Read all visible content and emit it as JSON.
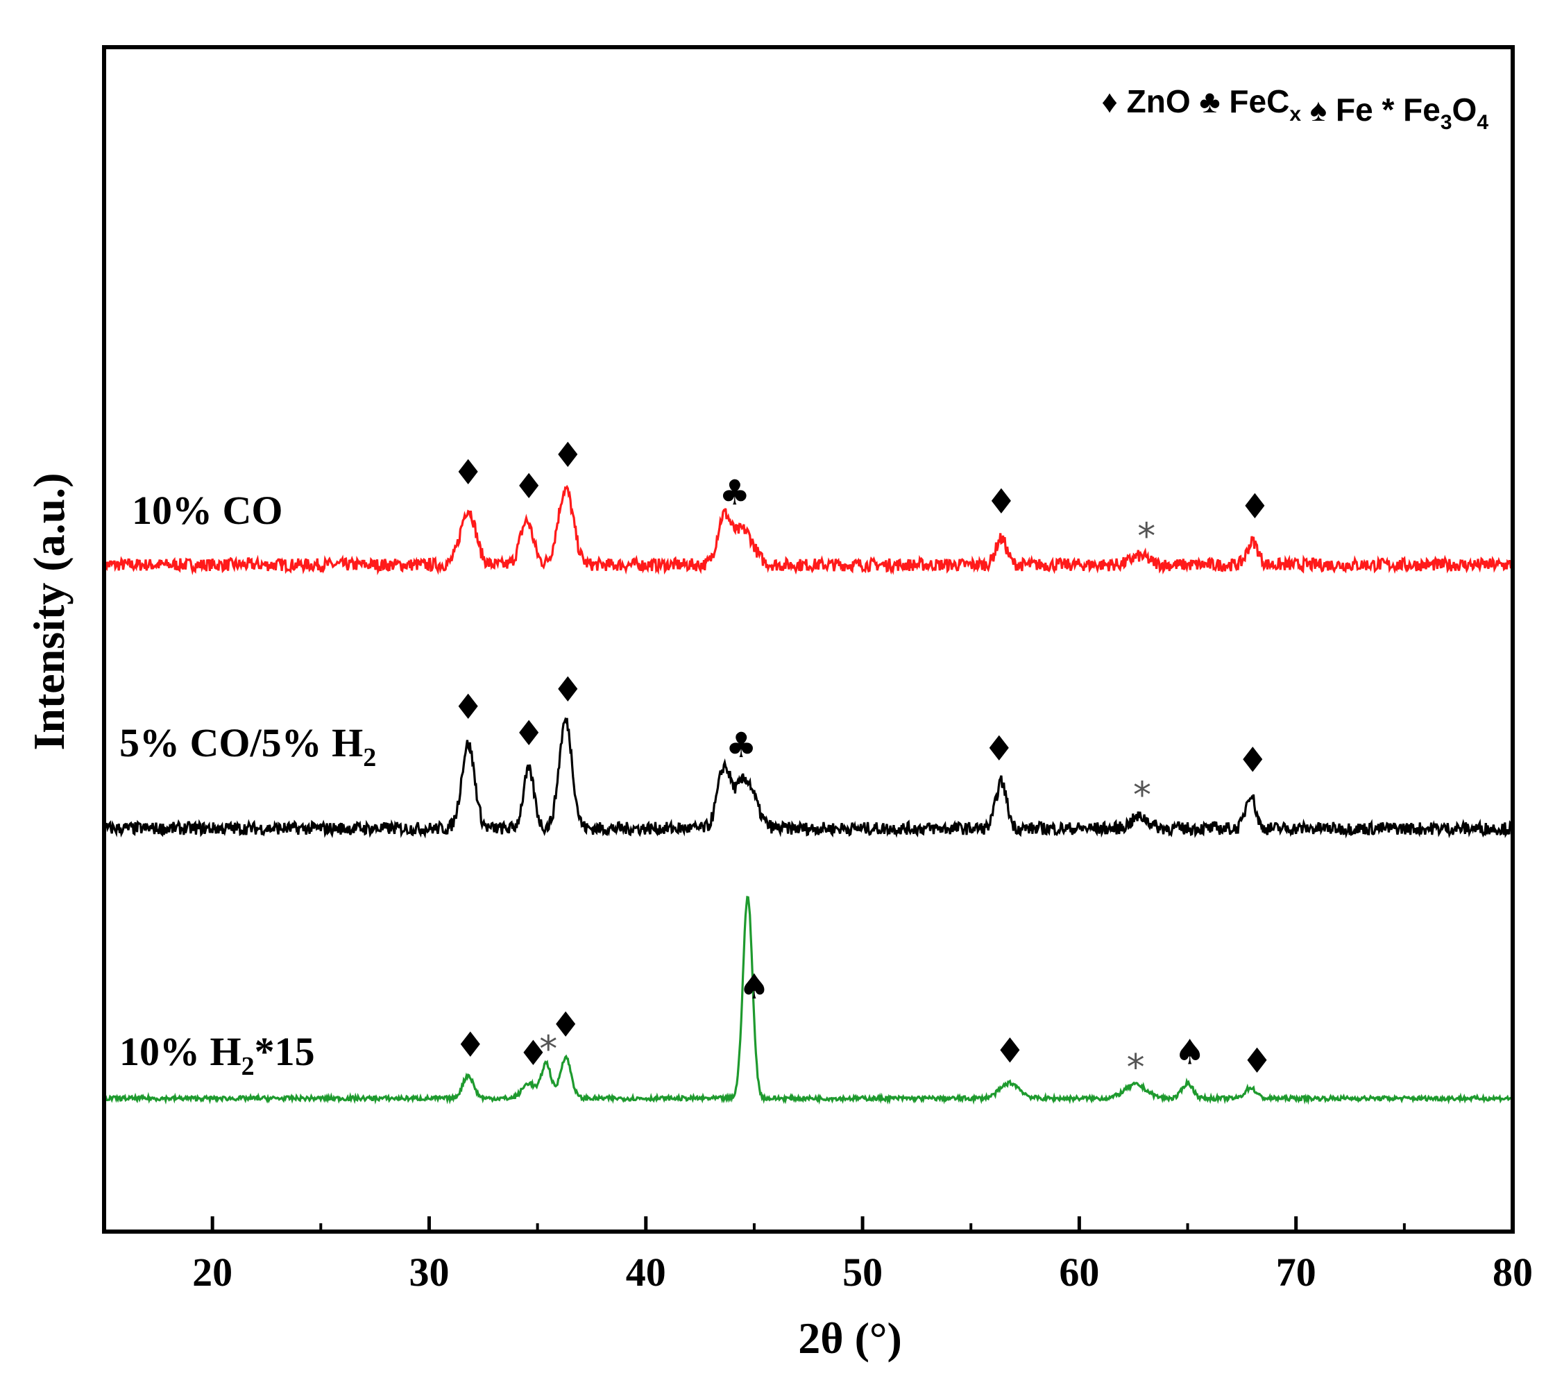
{
  "chart_data": {
    "type": "line",
    "xlabel": "2θ (°)",
    "ylabel": "Intensity (a.u.)",
    "xlim": [
      15,
      80
    ],
    "x_ticks": [
      20,
      30,
      40,
      50,
      60,
      70,
      80
    ],
    "y_ticks": [],
    "grid": false,
    "legend": {
      "placement": "top-right",
      "entries": [
        {
          "symbol": "♦",
          "parts": [
            {
              "t": "ZnO"
            }
          ]
        },
        {
          "symbol": "♣",
          "parts": [
            {
              "t": "FeC"
            },
            {
              "t": "x",
              "sub": true
            }
          ]
        },
        {
          "symbol": "♠",
          "parts": [
            {
              "t": "Fe"
            }
          ]
        },
        {
          "symbol": "*",
          "parts": [
            {
              "t": "Fe"
            },
            {
              "t": "3",
              "sub": true
            },
            {
              "t": "O"
            },
            {
              "t": "4",
              "sub": true
            }
          ]
        }
      ]
    },
    "colors": {
      "red": "#ff1a1a",
      "black": "#000000",
      "green": "#1e9a2e"
    },
    "series": [
      {
        "name": "10% CO",
        "label_parts": [
          {
            "t": "10% CO"
          }
        ],
        "color": "#ff1a1a",
        "baseline": 0.5,
        "noise": 0.22,
        "peaks": [
          {
            "x": 31.8,
            "h": 1.9,
            "w": 0.35
          },
          {
            "x": 34.5,
            "h": 1.5,
            "w": 0.3
          },
          {
            "x": 36.3,
            "h": 2.6,
            "w": 0.35
          },
          {
            "x": 43.6,
            "h": 1.6,
            "w": 0.3
          },
          {
            "x": 44.5,
            "h": 1.2,
            "w": 0.45
          },
          {
            "x": 56.4,
            "h": 0.9,
            "w": 0.25
          },
          {
            "x": 62.8,
            "h": 0.3,
            "w": 0.4
          },
          {
            "x": 68.0,
            "h": 0.8,
            "w": 0.25
          }
        ]
      },
      {
        "name": "5% CO/5% H2",
        "label_parts": [
          {
            "t": "5% CO/5% H"
          },
          {
            "t": "2",
            "sub": true
          }
        ],
        "color": "#000000",
        "baseline": 0.5,
        "noise": 0.22,
        "peaks": [
          {
            "x": 31.8,
            "h": 2.9,
            "w": 0.3
          },
          {
            "x": 34.6,
            "h": 2.0,
            "w": 0.25
          },
          {
            "x": 36.3,
            "h": 3.7,
            "w": 0.3
          },
          {
            "x": 43.6,
            "h": 2.0,
            "w": 0.3
          },
          {
            "x": 44.6,
            "h": 1.7,
            "w": 0.45
          },
          {
            "x": 56.4,
            "h": 1.6,
            "w": 0.25
          },
          {
            "x": 62.8,
            "h": 0.4,
            "w": 0.4
          },
          {
            "x": 67.9,
            "h": 1.2,
            "w": 0.22
          }
        ]
      },
      {
        "name": "10% H2*15",
        "label_parts": [
          {
            "t": "10% H"
          },
          {
            "t": "2",
            "sub": true
          },
          {
            "t": "*15"
          }
        ],
        "color": "#1e9a2e",
        "baseline": 0.5,
        "noise": 0.07,
        "peaks": [
          {
            "x": 31.8,
            "h": 0.75,
            "w": 0.25
          },
          {
            "x": 34.6,
            "h": 0.5,
            "w": 0.3
          },
          {
            "x": 35.4,
            "h": 1.15,
            "w": 0.22
          },
          {
            "x": 36.3,
            "h": 1.35,
            "w": 0.25
          },
          {
            "x": 44.7,
            "h": 6.6,
            "w": 0.22
          },
          {
            "x": 56.8,
            "h": 0.5,
            "w": 0.45
          },
          {
            "x": 62.6,
            "h": 0.45,
            "w": 0.5
          },
          {
            "x": 65.0,
            "h": 0.5,
            "w": 0.25
          },
          {
            "x": 67.9,
            "h": 0.35,
            "w": 0.25
          }
        ]
      }
    ],
    "annotations": [
      {
        "series": 0,
        "x": 31.8,
        "symbol": "♦"
      },
      {
        "series": 0,
        "x": 34.6,
        "symbol": "♦"
      },
      {
        "series": 0,
        "x": 36.4,
        "symbol": "♦"
      },
      {
        "series": 0,
        "x": 44.1,
        "symbol": "♣"
      },
      {
        "series": 0,
        "x": 56.4,
        "symbol": "♦"
      },
      {
        "series": 0,
        "x": 63.1,
        "symbol": "*"
      },
      {
        "series": 0,
        "x": 68.1,
        "symbol": "♦"
      },
      {
        "series": 1,
        "x": 31.8,
        "symbol": "♦"
      },
      {
        "series": 1,
        "x": 34.6,
        "symbol": "♦"
      },
      {
        "series": 1,
        "x": 36.4,
        "symbol": "♦"
      },
      {
        "series": 1,
        "x": 44.4,
        "symbol": "♣"
      },
      {
        "series": 1,
        "x": 56.3,
        "symbol": "♦"
      },
      {
        "series": 1,
        "x": 62.9,
        "symbol": "*"
      },
      {
        "series": 1,
        "x": 68.0,
        "symbol": "♦"
      },
      {
        "series": 2,
        "x": 31.9,
        "symbol": "♦"
      },
      {
        "series": 2,
        "x": 34.8,
        "symbol": "♦"
      },
      {
        "series": 2,
        "x": 35.5,
        "symbol": "*"
      },
      {
        "series": 2,
        "x": 36.3,
        "symbol": "♦"
      },
      {
        "series": 2,
        "x": 45.0,
        "symbol": "♠"
      },
      {
        "series": 2,
        "x": 56.8,
        "symbol": "♦"
      },
      {
        "series": 2,
        "x": 62.6,
        "symbol": "*"
      },
      {
        "series": 2,
        "x": 65.1,
        "symbol": "♠"
      },
      {
        "series": 2,
        "x": 68.2,
        "symbol": "♦"
      }
    ]
  }
}
